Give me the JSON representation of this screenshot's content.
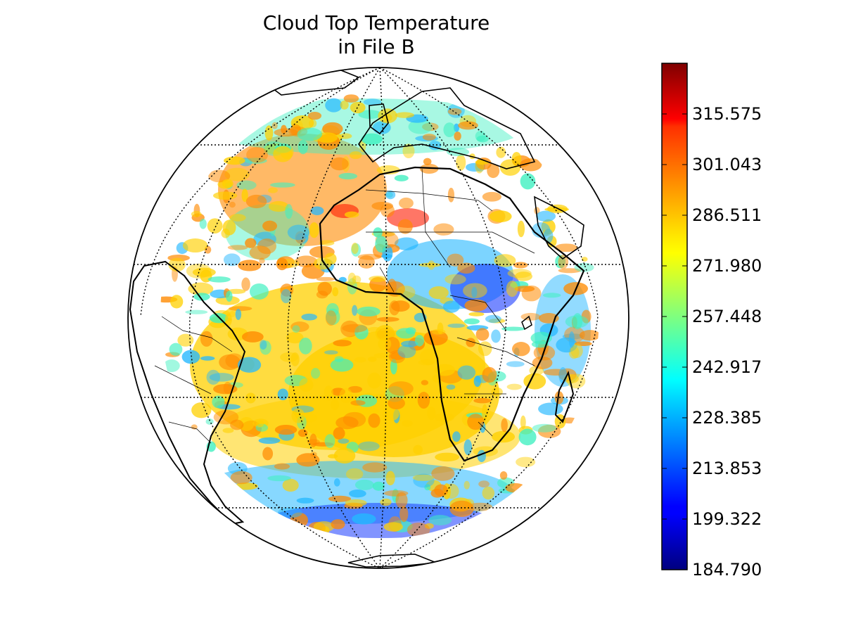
{
  "title_line1": "Cloud Top Temperature",
  "title_line2": "in File B",
  "colorbar": {
    "colormap": "jet",
    "min": 184.79,
    "max": 330.107,
    "ticks": [
      "184.790",
      "199.322",
      "213.853",
      "228.385",
      "242.917",
      "257.448",
      "271.980",
      "286.511",
      "301.043",
      "315.575"
    ]
  },
  "map": {
    "projection": "orthographic",
    "land_colors": {
      "cloud_free": "#ffffff"
    },
    "palette": {
      "cold": "#1a3cff",
      "cool": "#25b8ff",
      "mid": "#3ef0c0",
      "warm": "#ffd000",
      "hot": "#ff8a00",
      "very_hot": "#ff1a00"
    }
  }
}
